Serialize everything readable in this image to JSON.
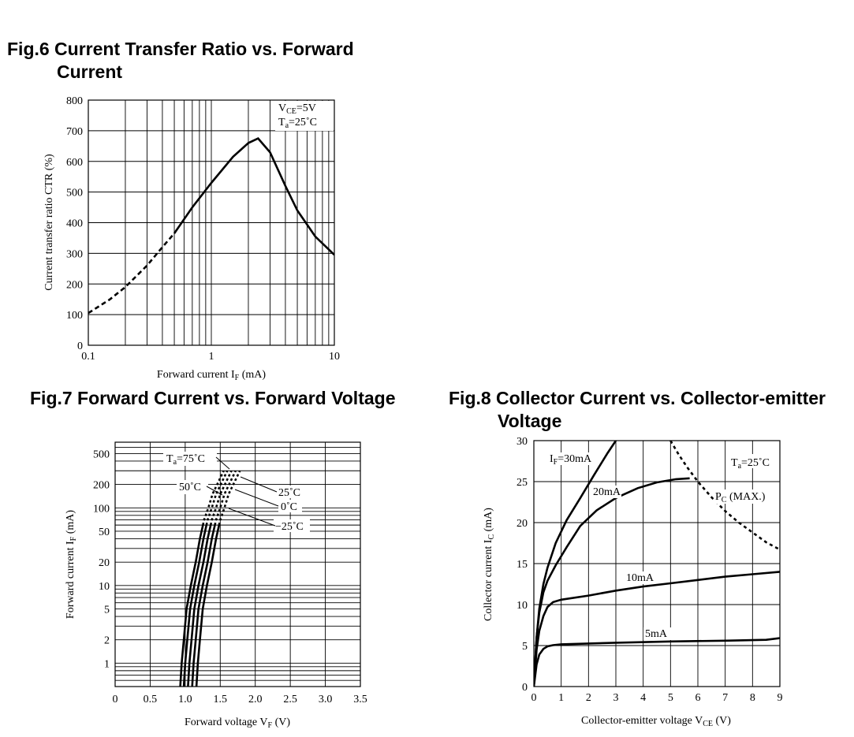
{
  "chart_data": [
    {
      "type": "line",
      "title": "Fig.6 Current Transfer Ratio vs. Forward",
      "title_line2": "Current",
      "xlabel": "Forward current I",
      "xlabel_sub": "F",
      "xlabel_unit": " (mA)",
      "ylabel": "Current transfer ratio CTR (%)",
      "x_scale": "log",
      "xlim": [
        0.1,
        10
      ],
      "ylim": [
        0,
        800
      ],
      "x_ticks": [
        {
          "v": 0.1,
          "label": "0.1"
        },
        {
          "v": 1,
          "label": "1"
        },
        {
          "v": 10,
          "label": "10"
        }
      ],
      "y_ticks": [
        {
          "v": 0,
          "label": "0"
        },
        {
          "v": 100,
          "label": "100"
        },
        {
          "v": 200,
          "label": "200"
        },
        {
          "v": 300,
          "label": "300"
        },
        {
          "v": 400,
          "label": "400"
        },
        {
          "v": 500,
          "label": "500"
        },
        {
          "v": 600,
          "label": "600"
        },
        {
          "v": 700,
          "label": "700"
        },
        {
          "v": 800,
          "label": "800"
        }
      ],
      "grid": true,
      "annotation_lines": [
        {
          "main": "V",
          "sub": "CE",
          "rest": "=5V"
        },
        {
          "main": "T",
          "sub": "a",
          "rest": "=25˚C"
        }
      ],
      "series": [
        {
          "style": "dashed",
          "x": [
            0.1,
            0.15,
            0.2,
            0.3,
            0.4,
            0.5
          ],
          "y": [
            105,
            150,
            190,
            260,
            320,
            365
          ]
        },
        {
          "style": "solid",
          "x": [
            0.5,
            0.7,
            1,
            1.5,
            2,
            2.4,
            3,
            4,
            5,
            7,
            10
          ],
          "y": [
            365,
            450,
            530,
            615,
            660,
            675,
            630,
            520,
            440,
            355,
            295
          ]
        }
      ]
    },
    {
      "type": "line",
      "title": "Fig.7 Forward Current vs. Forward Voltage",
      "xlabel": "Forward voltage V",
      "xlabel_sub": "F",
      "xlabel_unit": " (V)",
      "ylabel": "Forward current I",
      "ylabel_sub": "F",
      "ylabel_unit": " (mA)",
      "y_scale": "log",
      "xlim": [
        0,
        3.5
      ],
      "ylim": [
        0.5,
        700
      ],
      "x_ticks": [
        {
          "v": 0,
          "label": "0"
        },
        {
          "v": 0.5,
          "label": "0.5"
        },
        {
          "v": 1,
          "label": "1.0"
        },
        {
          "v": 1.5,
          "label": "1.5"
        },
        {
          "v": 2,
          "label": "2.0"
        },
        {
          "v": 2.5,
          "label": "2.5"
        },
        {
          "v": 3,
          "label": "3.0"
        },
        {
          "v": 3.5,
          "label": "3.5"
        }
      ],
      "y_ticks": [
        {
          "v": 1,
          "label": "1"
        },
        {
          "v": 2,
          "label": "2"
        },
        {
          "v": 5,
          "label": "5"
        },
        {
          "v": 10,
          "label": "10"
        },
        {
          "v": 20,
          "label": "20"
        },
        {
          "v": 50,
          "label": "50"
        },
        {
          "v": 100,
          "label": "100"
        },
        {
          "v": 200,
          "label": "200"
        },
        {
          "v": 500,
          "label": "500"
        }
      ],
      "grid": true,
      "series_labels": [
        {
          "main": "T",
          "sub": "a",
          "rest": "=75˚C"
        },
        {
          "main": "50˚C",
          "sub": "",
          "rest": ""
        },
        {
          "main": "25˚C",
          "sub": "",
          "rest": ""
        },
        {
          "main": "0˚C",
          "sub": "",
          "rest": ""
        },
        {
          "main": "−25˚C",
          "sub": "",
          "rest": ""
        }
      ],
      "series": [
        {
          "x": [
            0.93,
            0.95,
            0.98,
            1.02,
            1.08,
            1.15,
            1.21,
            1.27,
            1.33,
            1.39,
            1.55
          ],
          "y": [
            0.5,
            1,
            2,
            5,
            10,
            20,
            40,
            70,
            100,
            150,
            300
          ]
        },
        {
          "x": [
            0.98,
            1.0,
            1.03,
            1.07,
            1.13,
            1.2,
            1.26,
            1.32,
            1.38,
            1.44,
            1.6
          ],
          "y": [
            0.5,
            1,
            2,
            5,
            10,
            20,
            40,
            70,
            100,
            150,
            300
          ]
        },
        {
          "x": [
            1.04,
            1.06,
            1.09,
            1.13,
            1.19,
            1.26,
            1.32,
            1.38,
            1.44,
            1.5,
            1.66
          ],
          "y": [
            0.5,
            1,
            2,
            5,
            10,
            20,
            40,
            70,
            100,
            150,
            300
          ]
        },
        {
          "x": [
            1.1,
            1.12,
            1.15,
            1.19,
            1.25,
            1.32,
            1.38,
            1.44,
            1.5,
            1.56,
            1.72
          ],
          "y": [
            0.5,
            1,
            2,
            5,
            10,
            20,
            40,
            70,
            100,
            150,
            300
          ]
        },
        {
          "x": [
            1.16,
            1.18,
            1.21,
            1.25,
            1.31,
            1.38,
            1.44,
            1.5,
            1.56,
            1.62,
            1.78
          ],
          "y": [
            0.5,
            1,
            2,
            5,
            10,
            20,
            40,
            70,
            100,
            150,
            300
          ]
        }
      ]
    },
    {
      "type": "line",
      "title": "Fig.8 Collector Current vs. Collector-emitter",
      "title_line2": "Voltage",
      "xlabel": "Collector-emitter voltage V",
      "xlabel_sub": "CE",
      "xlabel_unit": " (V)",
      "ylabel": "Collector current I",
      "ylabel_sub": "C",
      "ylabel_unit": " (mA)",
      "xlim": [
        0,
        9
      ],
      "ylim": [
        0,
        30
      ],
      "x_ticks": [
        {
          "v": 0,
          "label": "0"
        },
        {
          "v": 1,
          "label": "1"
        },
        {
          "v": 2,
          "label": "2"
        },
        {
          "v": 3,
          "label": "3"
        },
        {
          "v": 4,
          "label": "4"
        },
        {
          "v": 5,
          "label": "5"
        },
        {
          "v": 6,
          "label": "6"
        },
        {
          "v": 7,
          "label": "7"
        },
        {
          "v": 8,
          "label": "8"
        },
        {
          "v": 9,
          "label": "9"
        }
      ],
      "y_ticks": [
        {
          "v": 0,
          "label": "0"
        },
        {
          "v": 5,
          "label": "5"
        },
        {
          "v": 10,
          "label": "10"
        },
        {
          "v": 15,
          "label": "15"
        },
        {
          "v": 20,
          "label": "20"
        },
        {
          "v": 25,
          "label": "25"
        },
        {
          "v": 30,
          "label": "30"
        }
      ],
      "grid": true,
      "annotation": {
        "main": "T",
        "sub": "a",
        "rest": "=25˚C"
      },
      "pc_label": {
        "main": "P",
        "sub": "C",
        "rest": " (MAX.)"
      },
      "series": [
        {
          "label_main": "I",
          "label_sub": "F",
          "label_rest": "=30mA",
          "x": [
            0,
            0.1,
            0.2,
            0.35,
            0.5,
            0.8,
            1.2,
            1.7,
            2.2,
            2.7,
            3.0
          ],
          "y": [
            0,
            6,
            9.5,
            12.5,
            14.5,
            17.5,
            20.3,
            23.0,
            25.8,
            28.5,
            30
          ]
        },
        {
          "label_main": "20mA",
          "label_sub": "",
          "label_rest": "",
          "x": [
            0,
            0.1,
            0.2,
            0.35,
            0.5,
            0.8,
            1.2,
            1.7,
            2.3,
            3.0,
            3.8,
            4.5,
            5.2,
            5.7
          ],
          "y": [
            0,
            6,
            9,
            11.5,
            12.9,
            14.8,
            17.0,
            19.6,
            21.5,
            23.0,
            24.2,
            24.9,
            25.3,
            25.4
          ]
        },
        {
          "label_main": "10mA",
          "label_sub": "",
          "label_rest": "",
          "x": [
            0,
            0.1,
            0.2,
            0.35,
            0.5,
            0.7,
            1.0,
            2,
            3,
            4,
            5,
            6,
            7,
            8,
            9
          ],
          "y": [
            0,
            4.5,
            6.8,
            8.6,
            9.7,
            10.3,
            10.6,
            11.1,
            11.7,
            12.2,
            12.6,
            13.0,
            13.4,
            13.7,
            14.0
          ]
        },
        {
          "label_main": "5mA",
          "label_sub": "",
          "label_rest": "",
          "x": [
            0,
            0.1,
            0.2,
            0.35,
            0.5,
            0.7,
            1.0,
            3,
            5,
            7,
            8.5,
            9
          ],
          "y": [
            0,
            2.7,
            3.9,
            4.6,
            4.9,
            5.05,
            5.15,
            5.35,
            5.5,
            5.6,
            5.7,
            5.9
          ]
        }
      ],
      "pc_curve": {
        "style": "dashed",
        "x": [
          5.0,
          5.3,
          5.6,
          6.0,
          6.5,
          7.0,
          7.5,
          8.0,
          8.5,
          9.0
        ],
        "y": [
          30,
          28.3,
          26.8,
          25.0,
          23.1,
          21.4,
          20.0,
          18.8,
          17.6,
          16.7
        ]
      }
    }
  ]
}
